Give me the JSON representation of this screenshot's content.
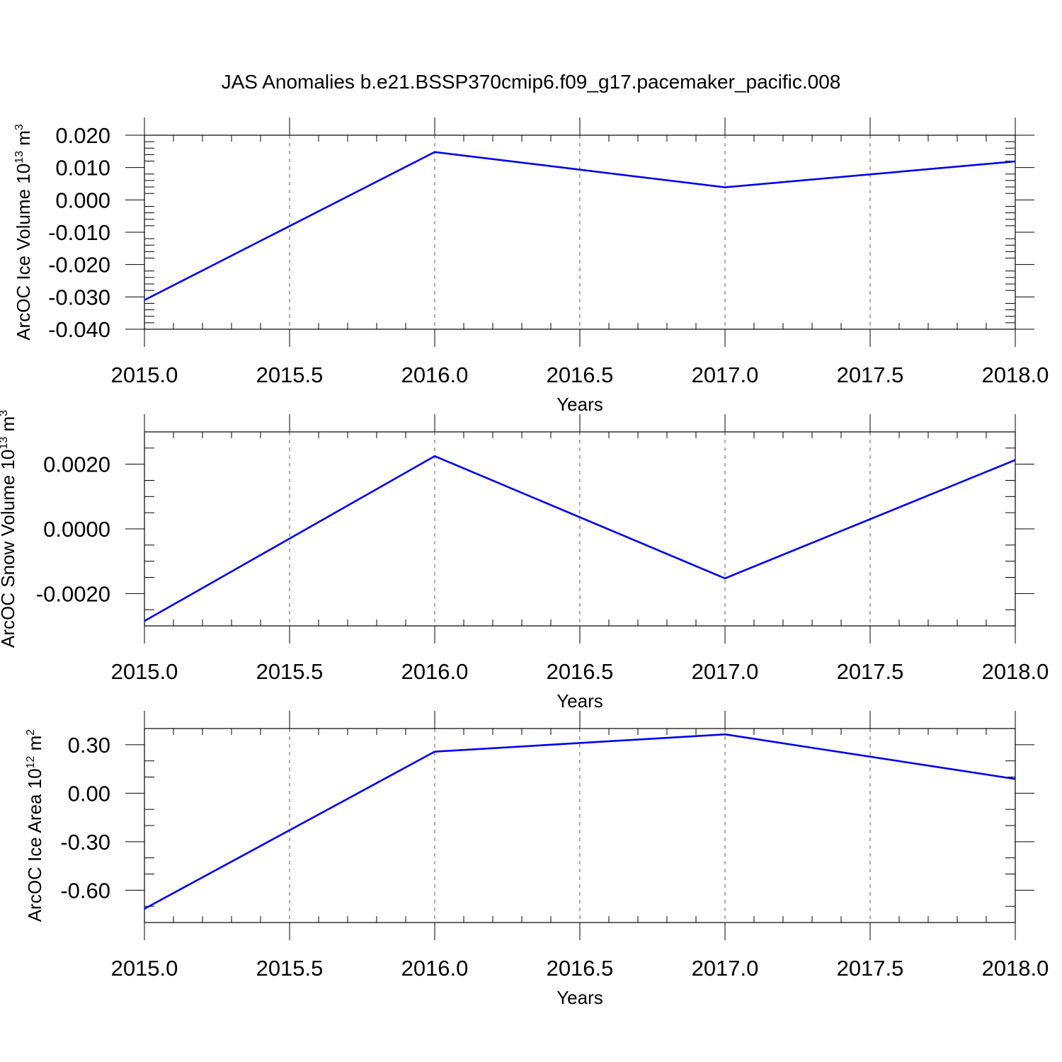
{
  "figure": {
    "title": "JAS Anomalies b.e21.BSSP370cmip6.f09_g17.pacemaker_pacific.008"
  },
  "colors": {
    "series": "#0000ee",
    "axes": "#000000",
    "grid": "#777777"
  },
  "chart_data": [
    {
      "type": "line",
      "title": "",
      "xlabel": "Years",
      "ylabel": "ArcOC Ice Volume 10",
      "ylabel_sup": "13",
      "ylabel_unit": "m",
      "ylabel_unit_sup": "3",
      "x": [
        2015,
        2016,
        2017,
        2018
      ],
      "series": [
        {
          "values": [
            -0.031,
            0.0148,
            0.0039,
            0.0119
          ]
        }
      ],
      "xlim": [
        2015,
        2018
      ],
      "ylim": [
        -0.04,
        0.02
      ],
      "xticks": [
        2015.0,
        2015.5,
        2016.0,
        2016.5,
        2017.0,
        2017.5,
        2018.0
      ],
      "xtick_labels": [
        "2015.0",
        "2015.5",
        "2016.0",
        "2016.5",
        "2017.0",
        "2017.5",
        "2018.0"
      ],
      "yticks": [
        -0.04,
        -0.03,
        -0.02,
        -0.01,
        0.0,
        0.01,
        0.02
      ],
      "ytick_labels": [
        "-0.040",
        "-0.030",
        "-0.020",
        "-0.010",
        "0.000",
        "0.010",
        "0.020"
      ],
      "y_minor_step": 0.002,
      "x_minor_step": 0.1,
      "grid": "vertical dashed at major x ticks",
      "legend": "none"
    },
    {
      "type": "line",
      "title": "",
      "xlabel": "Years",
      "ylabel": "ArcOC Snow Volume 10",
      "ylabel_sup": "13",
      "ylabel_unit": "m",
      "ylabel_unit_sup": "3",
      "x": [
        2015,
        2016,
        2017,
        2018
      ],
      "series": [
        {
          "values": [
            -0.00285,
            0.00225,
            -0.00153,
            0.00213
          ]
        }
      ],
      "xlim": [
        2015,
        2018
      ],
      "ylim": [
        -0.003,
        0.003
      ],
      "xticks": [
        2015.0,
        2015.5,
        2016.0,
        2016.5,
        2017.0,
        2017.5,
        2018.0
      ],
      "xtick_labels": [
        "2015.0",
        "2015.5",
        "2016.0",
        "2016.5",
        "2017.0",
        "2017.5",
        "2018.0"
      ],
      "yticks": [
        -0.002,
        0.0,
        0.002
      ],
      "ytick_labels": [
        "-0.0020",
        "0.0000",
        "0.0020"
      ],
      "y_minor_step": 0.0005,
      "x_minor_step": 0.1,
      "grid": "vertical dashed at major x ticks",
      "legend": "none"
    },
    {
      "type": "line",
      "title": "",
      "xlabel": "Years",
      "ylabel": "ArcOC Ice Area 10",
      "ylabel_sup": "12",
      "ylabel_unit": "m",
      "ylabel_unit_sup": "2",
      "x": [
        2015,
        2016,
        2017,
        2018
      ],
      "series": [
        {
          "values": [
            -0.715,
            0.257,
            0.364,
            0.088
          ]
        }
      ],
      "xlim": [
        2015,
        2018
      ],
      "ylim": [
        -0.8,
        0.4
      ],
      "xticks": [
        2015.0,
        2015.5,
        2016.0,
        2016.5,
        2017.0,
        2017.5,
        2018.0
      ],
      "xtick_labels": [
        "2015.0",
        "2015.5",
        "2016.0",
        "2016.5",
        "2017.0",
        "2017.5",
        "2018.0"
      ],
      "yticks": [
        -0.6,
        -0.3,
        0.0,
        0.3
      ],
      "ytick_labels": [
        "-0.60",
        "-0.30",
        "0.00",
        "0.30"
      ],
      "y_minor_step": 0.1,
      "x_minor_step": 0.1,
      "grid": "vertical dashed at major x ticks",
      "legend": "none"
    }
  ]
}
